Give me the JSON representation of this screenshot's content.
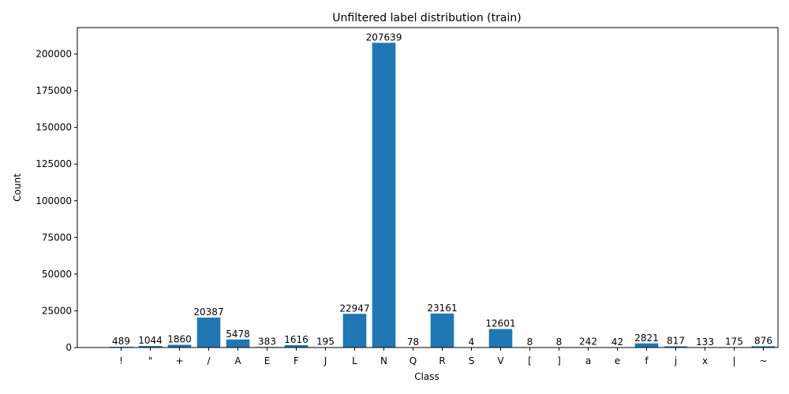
{
  "chart_data": {
    "type": "bar",
    "title": "Unfiltered label distribution (train)",
    "xlabel": "Class",
    "ylabel": "Count",
    "categories": [
      "!",
      "\"",
      "+",
      "/",
      "A",
      "E",
      "F",
      "J",
      "L",
      "N",
      "Q",
      "R",
      "S",
      "V",
      "[",
      "]",
      "a",
      "e",
      "f",
      "j",
      "x",
      "|",
      "~"
    ],
    "values": [
      489,
      1044,
      1860,
      20387,
      5478,
      383,
      1616,
      195,
      22947,
      207639,
      78,
      23161,
      4,
      12601,
      8,
      8,
      242,
      42,
      2821,
      817,
      133,
      175,
      876
    ],
    "ylim": [
      0,
      218021
    ],
    "yticks": [
      0,
      25000,
      50000,
      75000,
      100000,
      125000,
      150000,
      175000,
      200000
    ],
    "bar_color": "#1f77b4",
    "grid": false,
    "legend": false
  }
}
